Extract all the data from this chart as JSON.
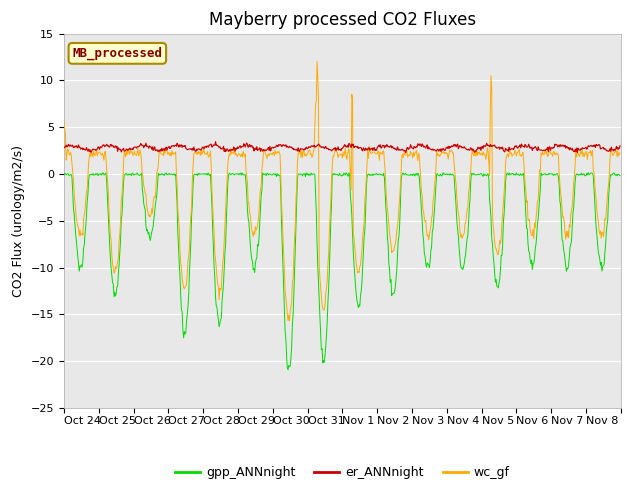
{
  "title": "Mayberry processed CO2 Fluxes",
  "ylabel": "CO2 Flux (urology/m2/s)",
  "ylim": [
    -25,
    15
  ],
  "yticks": [
    -25,
    -20,
    -15,
    -10,
    -5,
    0,
    5,
    10,
    15
  ],
  "n_days": 16,
  "pts_per_day": 48,
  "date_labels": [
    "Oct 24",
    "Oct 25",
    "Oct 26",
    "Oct 27",
    "Oct 28",
    "Oct 29",
    "Oct 30",
    "Oct 31",
    "Nov 1",
    "Nov 2",
    "Nov 3",
    "Nov 4",
    "Nov 5",
    "Nov 6",
    "Nov 7",
    "Nov 8"
  ],
  "color_gpp": "#00dd00",
  "color_er": "#cc0000",
  "color_wc": "#ffaa00",
  "legend_label": "MB_processed",
  "legend_box_facecolor": "#ffffcc",
  "legend_box_edgecolor": "#aa8800",
  "legend_text_color": "#880000",
  "bg_color": "#e8e8e8",
  "line_labels": [
    "gpp_ANNnight",
    "er_ANNnight",
    "wc_gf"
  ],
  "title_fontsize": 12,
  "tick_fontsize": 8,
  "ylabel_fontsize": 9,
  "legend_fontsize": 9,
  "day_amplitudes_gpp": [
    10,
    13,
    7,
    17,
    16,
    10,
    21,
    20,
    14,
    13,
    10,
    10,
    12,
    10,
    10,
    10
  ],
  "day_amplitudes_wc": [
    8,
    12,
    6,
    14,
    14,
    8,
    17,
    16,
    12,
    10,
    8,
    8,
    10,
    8,
    8,
    8
  ],
  "figsize": [
    6.4,
    4.8
  ],
  "dpi": 100
}
